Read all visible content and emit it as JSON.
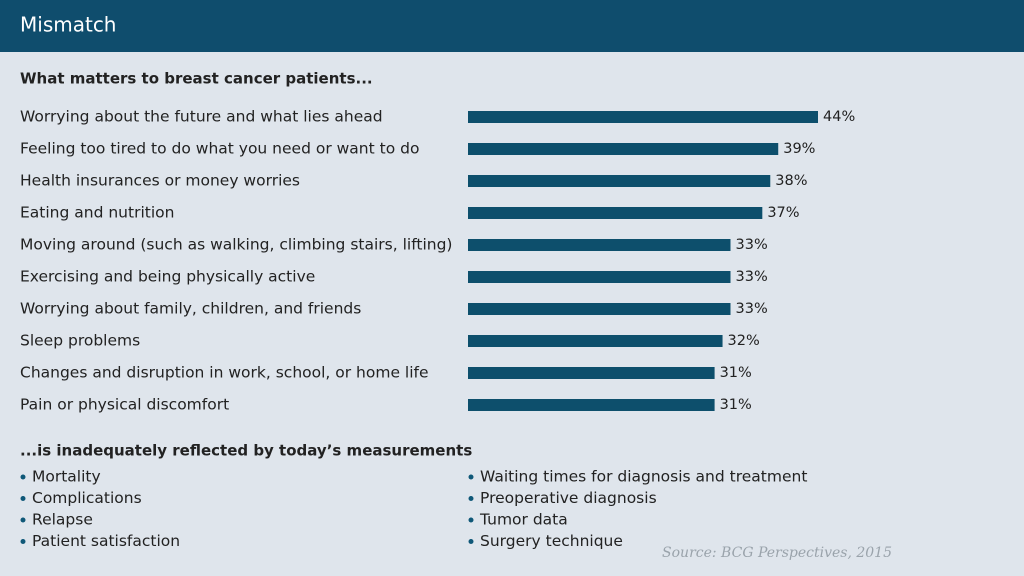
{
  "header": {
    "title": "Mismatch"
  },
  "chart_data": {
    "type": "bar",
    "orientation": "horizontal",
    "title": "What matters to breast cancer patients...",
    "categories": [
      "Worrying about the future and what lies ahead",
      "Feeling too tired to do what you need or want to do",
      "Health insurances or money worries",
      "Eating and nutrition",
      "Moving around (such as walking, climbing stairs, lifting)",
      "Exercising and being physically active",
      "Worrying about family, children, and friends",
      "Sleep problems",
      "Changes and disruption in work, school, or home life",
      "Pain or physical discomfort"
    ],
    "values": [
      44,
      39,
      38,
      37,
      33,
      33,
      33,
      32,
      31,
      31
    ],
    "value_labels": [
      "44%",
      "39%",
      "38%",
      "37%",
      "33%",
      "33%",
      "33%",
      "32%",
      "31%",
      "31%"
    ],
    "color": "#0d4f6c"
  },
  "measurements": {
    "title": "...is inadequately reflected by today’s measurements",
    "left": [
      "Mortality",
      "Complications",
      "Relapse",
      "Patient satisfaction"
    ],
    "right": [
      "Waiting times for diagnosis and treatment",
      "Preoperative diagnosis",
      "Tumor data",
      "Surgery technique"
    ]
  },
  "source": "Source: BCG Perspectives, 2015"
}
